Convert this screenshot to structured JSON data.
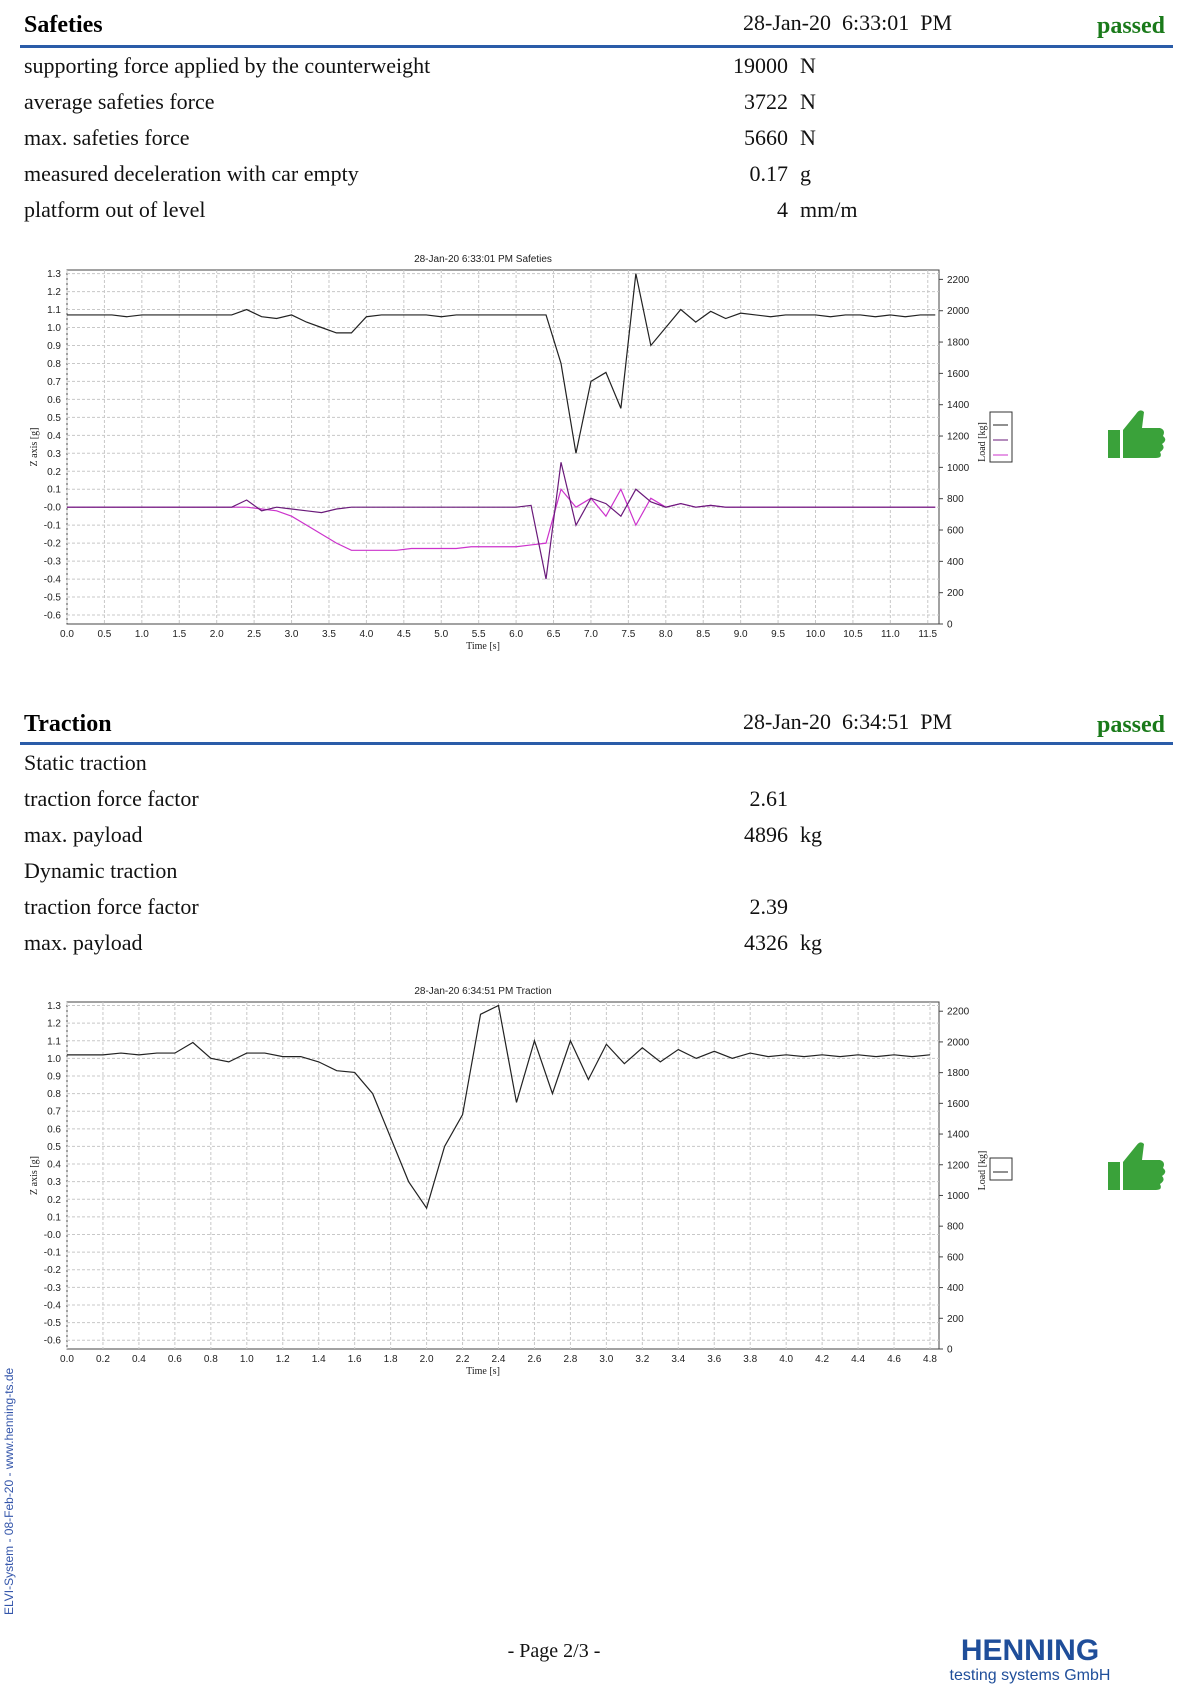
{
  "safeties": {
    "title": "Safeties",
    "datetime": "28-Jan-20  6:33:01  PM",
    "status": "passed",
    "rows": [
      {
        "label": "supporting force applied by the counterweight",
        "value": 19000,
        "unit": "N"
      },
      {
        "label": "average safeties force",
        "value": 3722,
        "unit": "N"
      },
      {
        "label": "max. safeties force",
        "value": 5660,
        "unit": "N"
      },
      {
        "label": "measured deceleration with car empty",
        "value": 0.17,
        "unit": "g"
      },
      {
        "label": "platform out of level",
        "value": 4,
        "unit": "mm/m"
      }
    ]
  },
  "traction": {
    "title": "Traction",
    "datetime": "28-Jan-20  6:34:51  PM",
    "status": "passed",
    "groups": [
      {
        "heading": "Static traction",
        "rows": [
          {
            "label": "traction force factor",
            "value": 2.61
          },
          {
            "label": "max. payload",
            "value": 4896,
            "unit": "kg"
          }
        ]
      },
      {
        "heading": "Dynamic traction",
        "rows": [
          {
            "label": "traction force factor",
            "value": 2.39
          },
          {
            "label": "max. payload",
            "value": 4326,
            "unit": "kg"
          }
        ]
      }
    ]
  },
  "chart_data": [
    {
      "type": "line",
      "title": "28-Jan-20 6:33:01 PM Safeties",
      "xlabel": "Time  [s]",
      "ylabel": "Z axis [g]",
      "y2label": "Load [kg]",
      "grid": true,
      "xlim": [
        0,
        11.65
      ],
      "ylim": [
        -0.65,
        1.32
      ],
      "y2lim": [
        0,
        2260
      ],
      "xticks": [
        {
          "value": 0,
          "label": "0.0"
        },
        0.5,
        {
          "value": 1,
          "label": "1.0"
        },
        1.5,
        {
          "value": 2,
          "label": "2.0"
        },
        2.5,
        {
          "value": 3,
          "label": "3.0"
        },
        3.5,
        {
          "value": 4,
          "label": "4.0"
        },
        4.5,
        {
          "value": 5,
          "label": "5.0"
        },
        5.5,
        {
          "value": 6,
          "label": "6.0"
        },
        6.5,
        {
          "value": 7,
          "label": "7.0"
        },
        7.5,
        {
          "value": 8,
          "label": "8.0"
        },
        8.5,
        {
          "value": 9,
          "label": "9.0"
        },
        9.5,
        {
          "value": 10,
          "label": "10.0"
        },
        10.5,
        {
          "value": 11,
          "label": "11.0"
        },
        11.5
      ],
      "yticks": [
        -0.6,
        -0.5,
        -0.4,
        -0.3,
        -0.2,
        -0.1,
        {
          "value": 0,
          "label": "-0.0"
        },
        0.1,
        0.2,
        0.3,
        0.4,
        0.5,
        0.6,
        0.7,
        0.8,
        0.9,
        {
          "value": 1,
          "label": "1.0"
        },
        1.1,
        1.2,
        1.3
      ],
      "y2ticks": [
        0,
        200,
        400,
        600,
        800,
        1000,
        1200,
        1400,
        1600,
        1800,
        2000,
        2200
      ],
      "x": [
        0,
        0.2,
        0.4,
        0.6,
        0.8,
        1,
        1.2,
        1.4,
        1.6,
        1.8,
        2,
        2.2,
        2.4,
        2.6,
        2.8,
        3,
        3.2,
        3.4,
        3.6,
        3.8,
        4,
        4.2,
        4.4,
        4.6,
        4.8,
        5,
        5.2,
        5.4,
        5.6,
        5.8,
        6,
        6.2,
        6.4,
        6.6,
        6.8,
        7,
        7.2,
        7.4,
        7.6,
        7.8,
        8,
        8.2,
        8.4,
        8.6,
        8.8,
        9,
        9.2,
        9.4,
        9.6,
        9.8,
        10,
        10.2,
        10.4,
        10.6,
        10.8,
        11,
        11.2,
        11.4,
        11.6
      ],
      "series": [
        {
          "color": "#222222",
          "values": [
            1.07,
            1.07,
            1.07,
            1.07,
            1.06,
            1.07,
            1.07,
            1.07,
            1.07,
            1.07,
            1.07,
            1.07,
            1.1,
            1.06,
            1.05,
            1.07,
            1.03,
            1.0,
            0.97,
            0.97,
            1.06,
            1.07,
            1.07,
            1.07,
            1.07,
            1.06,
            1.07,
            1.07,
            1.07,
            1.07,
            1.07,
            1.07,
            1.07,
            0.8,
            0.3,
            0.7,
            0.75,
            0.55,
            1.3,
            0.9,
            1.0,
            1.1,
            1.03,
            1.09,
            1.05,
            1.08,
            1.07,
            1.06,
            1.07,
            1.07,
            1.07,
            1.06,
            1.07,
            1.07,
            1.06,
            1.07,
            1.06,
            1.07,
            1.07
          ]
        },
        {
          "color": "#cc33cc",
          "values": [
            0,
            0,
            0,
            0,
            0,
            0,
            0,
            0,
            0,
            0,
            0,
            0,
            0,
            -0.01,
            -0.02,
            -0.05,
            -0.1,
            -0.15,
            -0.2,
            -0.24,
            -0.24,
            -0.24,
            -0.24,
            -0.23,
            -0.23,
            -0.23,
            -0.23,
            -0.22,
            -0.22,
            -0.22,
            -0.22,
            -0.21,
            -0.2,
            0.1,
            0,
            0.05,
            -0.05,
            0.1,
            -0.1,
            0.05,
            0,
            0.02,
            0,
            0.01,
            0,
            0,
            0,
            0,
            0,
            0,
            0,
            0,
            0,
            0,
            0,
            0,
            0,
            0,
            0
          ]
        },
        {
          "color": "#6a1a7a",
          "values": [
            0,
            0,
            0,
            0,
            0,
            0,
            0,
            0,
            0,
            0,
            0,
            0,
            0.04,
            -0.02,
            0,
            -0.01,
            -0.02,
            -0.03,
            -0.01,
            0,
            0,
            0,
            0,
            0,
            0,
            0,
            0,
            0,
            0,
            0,
            0,
            0.01,
            -0.4,
            0.25,
            -0.1,
            0.05,
            0.02,
            -0.05,
            0.1,
            0.03,
            0,
            0.02,
            0,
            0.01,
            0,
            0,
            0,
            0,
            0,
            0,
            0,
            0,
            0,
            0,
            0,
            0,
            0,
            0,
            0
          ]
        }
      ]
    },
    {
      "type": "line",
      "title": "28-Jan-20 6:34:51 PM Traction",
      "xlabel": "Time  [s]",
      "ylabel": "Z axis [g]",
      "y2label": "Load [kg]",
      "grid": true,
      "xlim": [
        0,
        4.85
      ],
      "ylim": [
        -0.65,
        1.32
      ],
      "y2lim": [
        0,
        2260
      ],
      "xticks": [
        {
          "value": 0,
          "label": "0.0"
        },
        0.2,
        0.4,
        0.6,
        0.8,
        {
          "value": 1,
          "label": "1.0"
        },
        1.2,
        1.4,
        1.6,
        1.8,
        {
          "value": 2,
          "label": "2.0"
        },
        2.2,
        2.4,
        2.6,
        2.8,
        {
          "value": 3,
          "label": "3.0"
        },
        3.2,
        3.4,
        3.6,
        3.8,
        {
          "value": 4,
          "label": "4.0"
        },
        4.2,
        4.4,
        4.6,
        4.8
      ],
      "yticks": [
        -0.6,
        -0.5,
        -0.4,
        -0.3,
        -0.2,
        -0.1,
        {
          "value": 0,
          "label": "-0.0"
        },
        0.1,
        0.2,
        0.3,
        0.4,
        0.5,
        0.6,
        0.7,
        0.8,
        0.9,
        {
          "value": 1,
          "label": "1.0"
        },
        1.1,
        1.2,
        1.3
      ],
      "y2ticks": [
        0,
        200,
        400,
        600,
        800,
        1000,
        1200,
        1400,
        1600,
        1800,
        2000,
        2200
      ],
      "x": [
        0,
        0.1,
        0.2,
        0.3,
        0.4,
        0.5,
        0.6,
        0.7,
        0.8,
        0.9,
        1,
        1.1,
        1.2,
        1.3,
        1.4,
        1.5,
        1.6,
        1.7,
        1.8,
        1.9,
        2,
        2.1,
        2.2,
        2.3,
        2.4,
        2.5,
        2.6,
        2.7,
        2.8,
        2.9,
        3,
        3.1,
        3.2,
        3.3,
        3.4,
        3.5,
        3.6,
        3.7,
        3.8,
        3.9,
        4,
        4.1,
        4.2,
        4.3,
        4.4,
        4.5,
        4.6,
        4.7,
        4.8
      ],
      "series": [
        {
          "color": "#222222",
          "values": [
            1.02,
            1.02,
            1.02,
            1.03,
            1.02,
            1.03,
            1.03,
            1.09,
            1.0,
            0.98,
            1.03,
            1.03,
            1.01,
            1.01,
            0.98,
            0.93,
            0.92,
            0.8,
            0.55,
            0.3,
            0.15,
            0.5,
            0.68,
            1.25,
            1.3,
            0.75,
            1.1,
            0.8,
            1.1,
            0.88,
            1.08,
            0.97,
            1.06,
            0.98,
            1.05,
            1.0,
            1.04,
            1.0,
            1.03,
            1.01,
            1.02,
            1.01,
            1.02,
            1.01,
            1.02,
            1.01,
            1.02,
            1.01,
            1.02
          ]
        }
      ]
    }
  ],
  "sidebar": "ELVI-System - 08-Feb-20 - www.henning-ts.de",
  "footer": {
    "page": "- Page 2/3 -",
    "logo": "HENNING",
    "company": "testing systems GmbH"
  }
}
